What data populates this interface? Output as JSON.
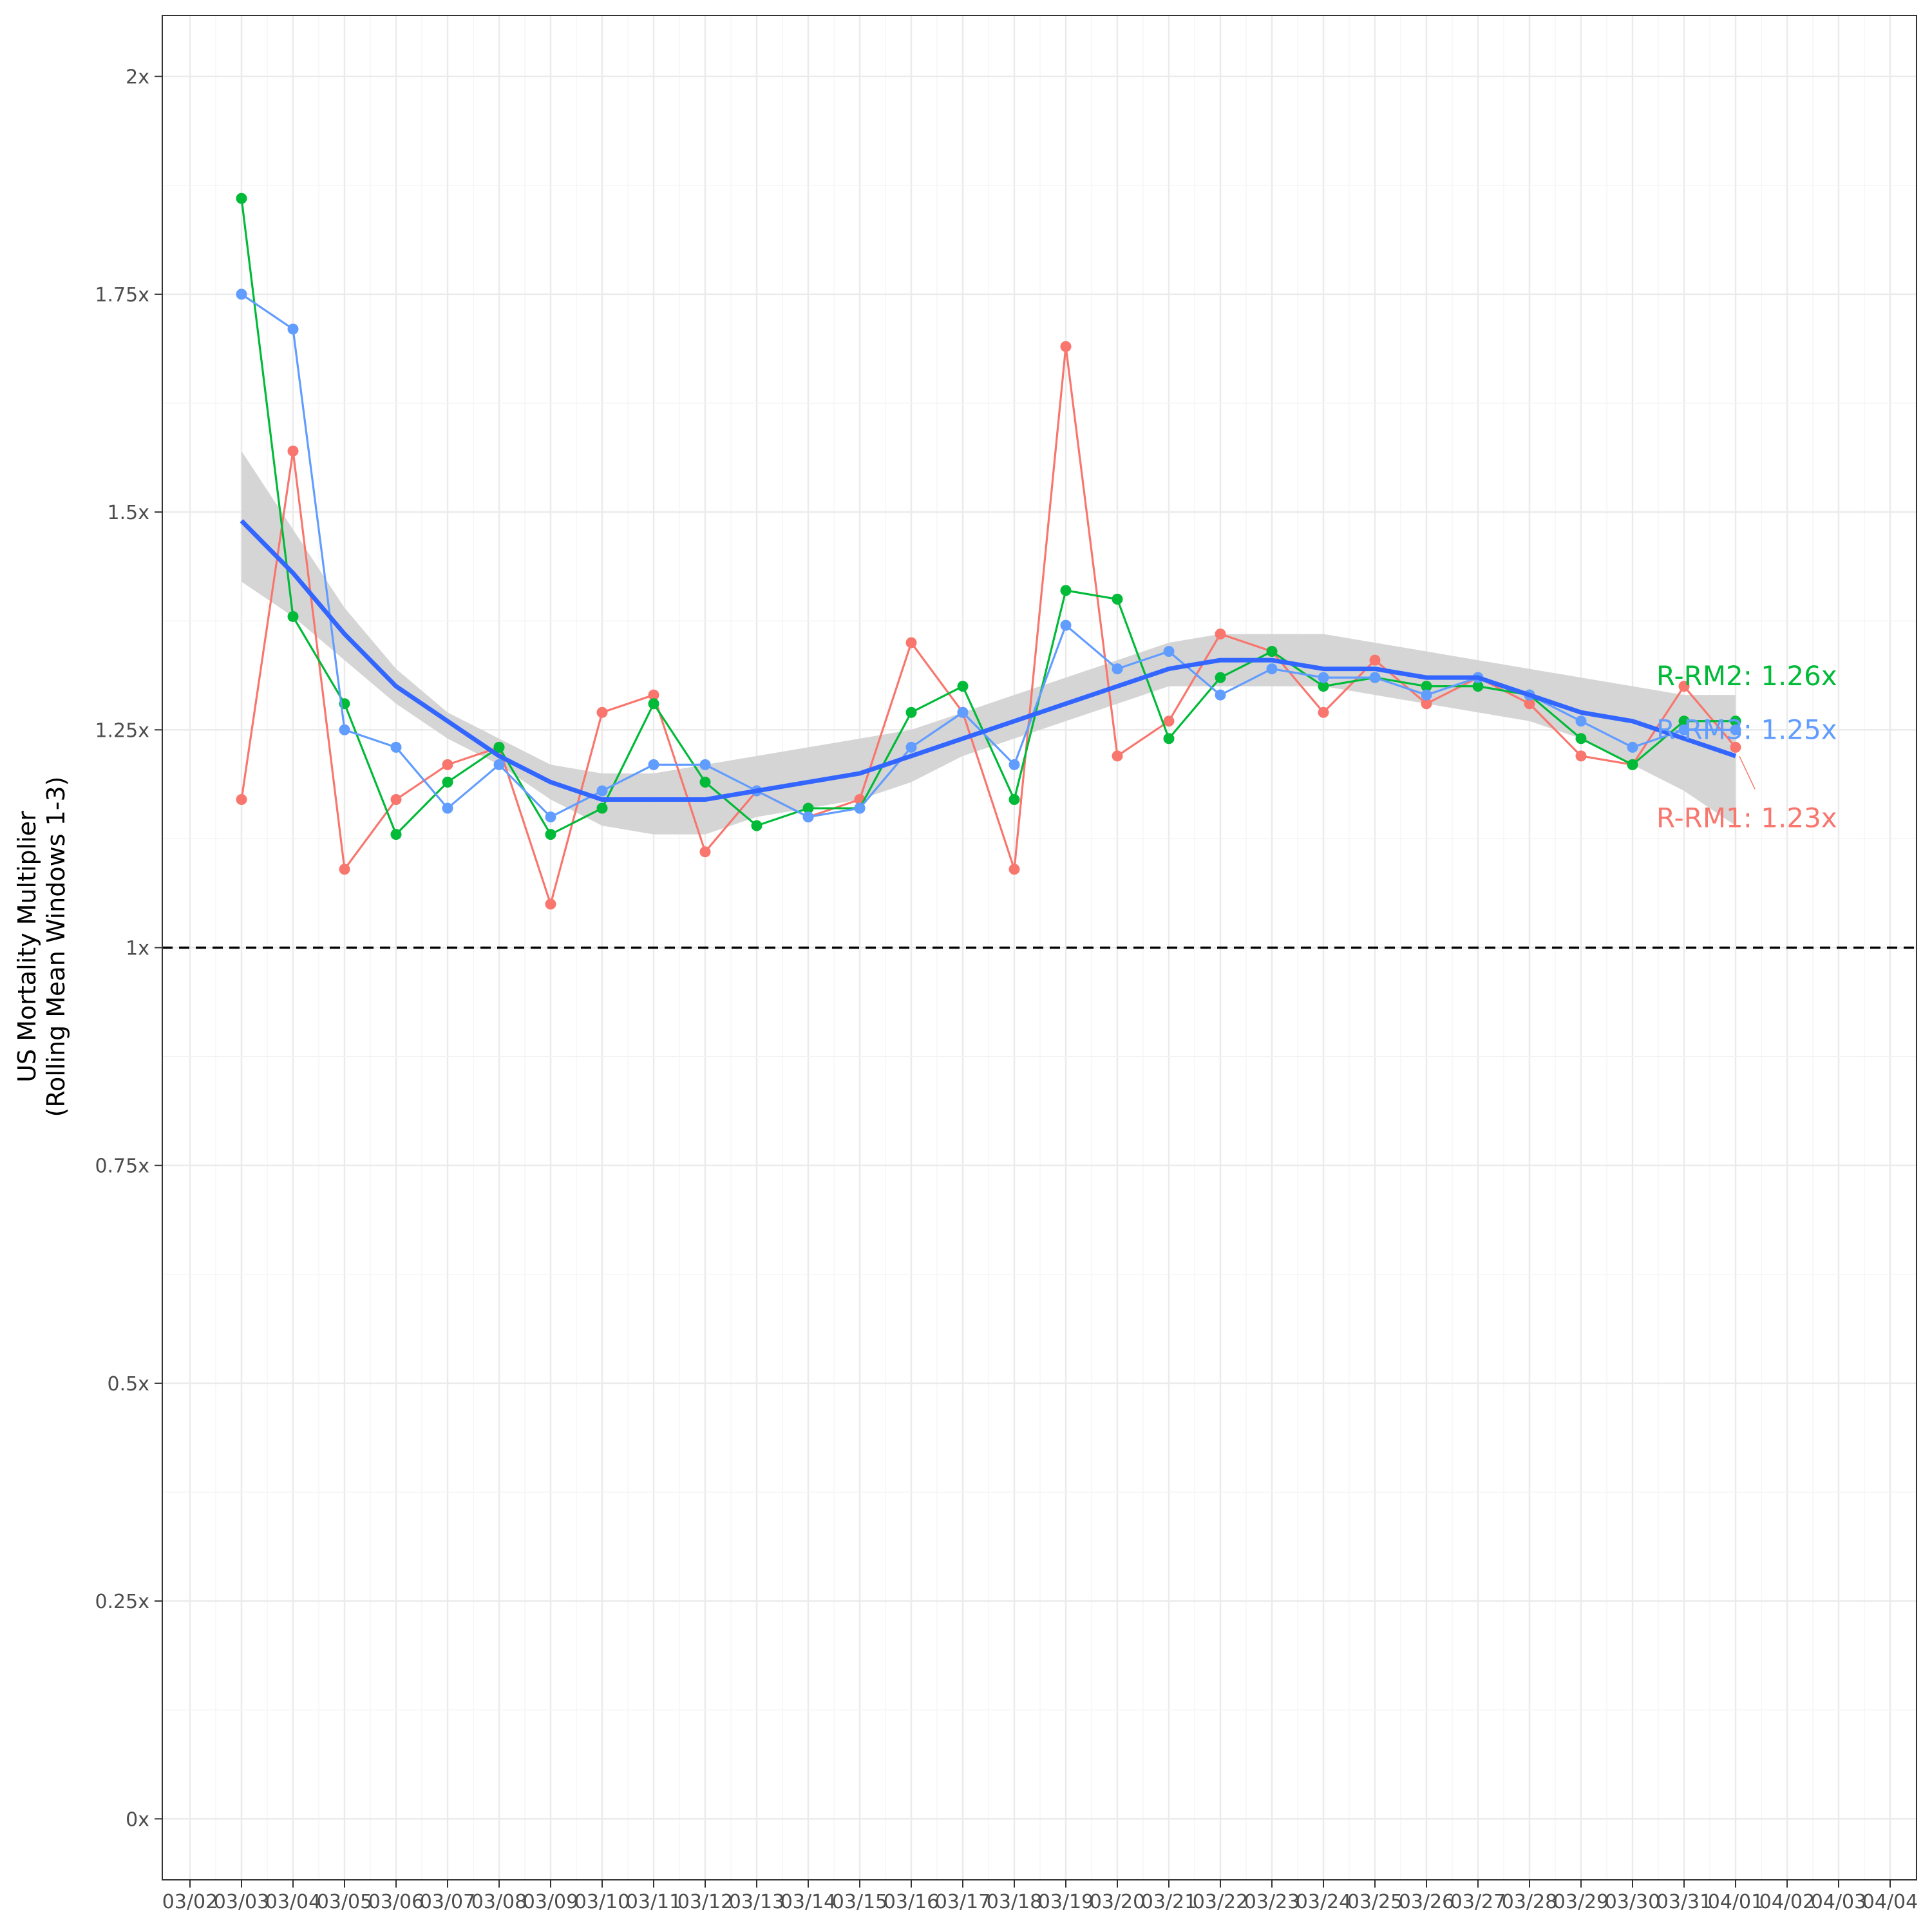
{
  "chart_data": {
    "type": "line",
    "title": "",
    "xlabel": "",
    "ylabel": "US Mortality Multiplier",
    "ylabel_line2": "(Rolling Mean Windows 1-3)",
    "ylim": [
      -0.07,
      2.07
    ],
    "yticks": [
      0,
      0.25,
      0.5,
      0.75,
      1,
      1.25,
      1.5,
      1.75,
      2
    ],
    "ytick_labels": [
      "0x",
      "0.25x",
      "0.5x",
      "0.75x",
      "1x",
      "1.25x",
      "1.5x",
      "1.75x",
      "2x"
    ],
    "x_tick_labels": [
      "03/02",
      "03/03",
      "03/04",
      "03/05",
      "03/06",
      "03/07",
      "03/08",
      "03/09",
      "03/10",
      "03/11",
      "03/12",
      "03/13",
      "03/14",
      "03/15",
      "03/16",
      "03/17",
      "03/18",
      "03/19",
      "03/20",
      "03/21",
      "03/22",
      "03/23",
      "03/24",
      "03/25",
      "03/26",
      "03/27",
      "03/28",
      "03/29",
      "03/30",
      "03/31",
      "04/01",
      "04/02",
      "04/03",
      "04/04"
    ],
    "x": [
      "03/03",
      "03/04",
      "03/05",
      "03/06",
      "03/07",
      "03/08",
      "03/09",
      "03/10",
      "03/11",
      "03/12",
      "03/13",
      "03/14",
      "03/15",
      "03/16",
      "03/17",
      "03/18",
      "03/19",
      "03/20",
      "03/21",
      "03/22",
      "03/23",
      "03/24",
      "03/25",
      "03/26",
      "03/27",
      "03/28",
      "03/29",
      "03/30",
      "03/31",
      "04/01"
    ],
    "reference_line": 1,
    "grid": true,
    "legend": "none",
    "series": [
      {
        "name": "R-RM1",
        "color": "#F8766D",
        "values": [
          1.17,
          1.57,
          1.09,
          1.17,
          1.21,
          1.23,
          1.05,
          1.27,
          1.29,
          1.11,
          1.18,
          1.15,
          1.17,
          1.35,
          1.27,
          1.09,
          1.69,
          1.22,
          1.26,
          1.36,
          1.34,
          1.27,
          1.33,
          1.28,
          1.31,
          1.28,
          1.22,
          1.21,
          1.3,
          1.23
        ]
      },
      {
        "name": "R-RM2",
        "color": "#00BA38",
        "values": [
          1.86,
          1.38,
          1.28,
          1.13,
          1.19,
          1.23,
          1.13,
          1.16,
          1.28,
          1.19,
          1.14,
          1.16,
          1.16,
          1.27,
          1.3,
          1.17,
          1.41,
          1.4,
          1.24,
          1.31,
          1.34,
          1.3,
          1.31,
          1.3,
          1.3,
          1.29,
          1.24,
          1.21,
          1.26,
          1.26
        ]
      },
      {
        "name": "R-RM3",
        "color": "#619CFF",
        "values": [
          1.75,
          1.71,
          1.25,
          1.23,
          1.16,
          1.21,
          1.15,
          1.18,
          1.21,
          1.21,
          1.18,
          1.15,
          1.16,
          1.23,
          1.27,
          1.21,
          1.37,
          1.32,
          1.34,
          1.29,
          1.32,
          1.31,
          1.31,
          1.29,
          1.31,
          1.29,
          1.26,
          1.23,
          1.25,
          1.25
        ]
      }
    ],
    "smooth": {
      "color": "#3366FF",
      "band_color": "#D3D3D3",
      "fit": [
        1.49,
        1.43,
        1.36,
        1.3,
        1.26,
        1.22,
        1.19,
        1.17,
        1.17,
        1.17,
        1.18,
        1.19,
        1.2,
        1.22,
        1.24,
        1.26,
        1.28,
        1.3,
        1.32,
        1.33,
        1.33,
        1.32,
        1.32,
        1.31,
        1.31,
        1.29,
        1.27,
        1.26,
        1.24,
        1.22
      ],
      "lower": [
        1.42,
        1.38,
        1.33,
        1.28,
        1.24,
        1.21,
        1.17,
        1.14,
        1.13,
        1.13,
        1.15,
        1.16,
        1.17,
        1.19,
        1.22,
        1.24,
        1.26,
        1.28,
        1.3,
        1.3,
        1.3,
        1.3,
        1.29,
        1.28,
        1.27,
        1.26,
        1.24,
        1.21,
        1.18,
        1.14
      ],
      "upper": [
        1.57,
        1.48,
        1.39,
        1.32,
        1.27,
        1.24,
        1.21,
        1.2,
        1.2,
        1.21,
        1.22,
        1.23,
        1.24,
        1.25,
        1.27,
        1.29,
        1.31,
        1.33,
        1.35,
        1.36,
        1.36,
        1.36,
        1.35,
        1.34,
        1.33,
        1.32,
        1.31,
        1.3,
        1.29,
        1.29
      ]
    },
    "end_labels": [
      {
        "series": "R-RM2",
        "text": "R-RM2: 1.26x",
        "color": "#00BA38"
      },
      {
        "series": "R-RM3",
        "text": "R-RM3: 1.25x",
        "color": "#619CFF"
      },
      {
        "series": "R-RM1",
        "text": "R-RM1: 1.23x",
        "color": "#F8766D"
      }
    ]
  }
}
